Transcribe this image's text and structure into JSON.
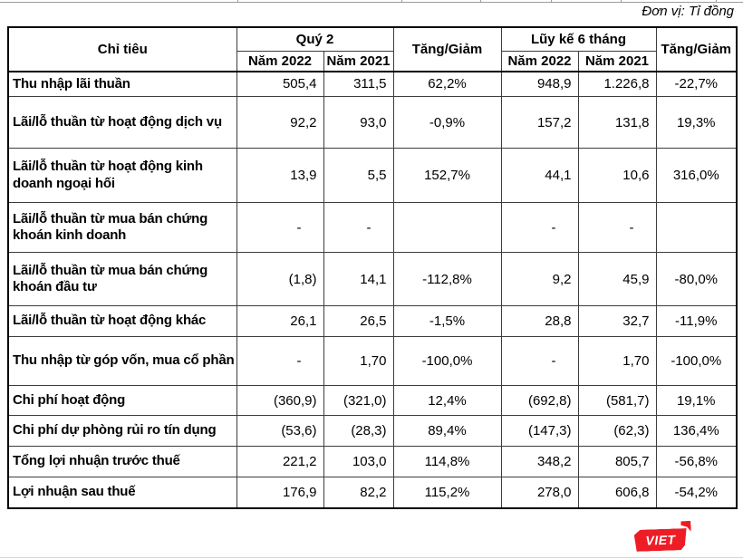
{
  "unit_label": "Đơn vị: Tỉ đồng",
  "table": {
    "headers": {
      "criteria": "Chỉ tiêu",
      "q2_group": "Quý 2",
      "cumulative_group": "Lũy kế 6 tháng",
      "change": "Tăng/Giảm",
      "year_2022": "Năm 2022",
      "year_2021": "Năm 2021"
    },
    "rows": [
      {
        "label": "Thu nhập lãi thuần",
        "values": [
          "505,4",
          "311,5",
          "62,2%",
          "948,9",
          "1.226,8",
          "-22,7%"
        ]
      },
      {
        "label": "Lãi/lỗ thuần từ hoạt động dịch vụ",
        "values": [
          "92,2",
          "93,0",
          "-0,9%",
          "157,2",
          "131,8",
          "19,3%"
        ]
      },
      {
        "label": "Lãi/lỗ thuần từ hoạt động kinh doanh ngoại hối",
        "values": [
          "13,9",
          "5,5",
          "152,7%",
          "44,1",
          "10,6",
          "316,0%"
        ]
      },
      {
        "label": "Lãi/lỗ thuần từ mua bán chứng khoán kinh doanh",
        "values": [
          "-",
          "-",
          "",
          "-",
          "-",
          ""
        ]
      },
      {
        "label": "Lãi/lỗ thuần từ mua bán chứng khoán đầu tư",
        "values": [
          "(1,8)",
          "14,1",
          "-112,8%",
          "9,2",
          "45,9",
          "-80,0%"
        ]
      },
      {
        "label": "Lãi/lỗ thuần từ hoạt động khác",
        "values": [
          "26,1",
          "26,5",
          "-1,5%",
          "28,8",
          "32,7",
          "-11,9%"
        ]
      },
      {
        "label": "Thu nhập từ góp vốn, mua cổ phần",
        "values": [
          "-",
          "1,70",
          "-100,0%",
          "-",
          "1,70",
          "-100,0%"
        ]
      },
      {
        "label": "Chi phí hoạt động",
        "values": [
          "(360,9)",
          "(321,0)",
          "12,4%",
          "(692,8)",
          "(581,7)",
          "19,1%"
        ]
      },
      {
        "label": "Chi phí dự phòng rủi ro tín dụng",
        "values": [
          "(53,6)",
          "(28,3)",
          "89,4%",
          "(147,3)",
          "(62,3)",
          "136,4%"
        ]
      },
      {
        "label": "Tổng lợi nhuận trước thuế",
        "values": [
          "221,2",
          "103,0",
          "114,8%",
          "348,2",
          "805,7",
          "-56,8%"
        ]
      },
      {
        "label": "Lợi nhuận sau thuế",
        "values": [
          "176,9",
          "82,2",
          "115,2%",
          "278,0",
          "606,8",
          "-54,2%"
        ]
      }
    ]
  },
  "logo": {
    "text": "VIET",
    "color": "#ee1c25"
  }
}
